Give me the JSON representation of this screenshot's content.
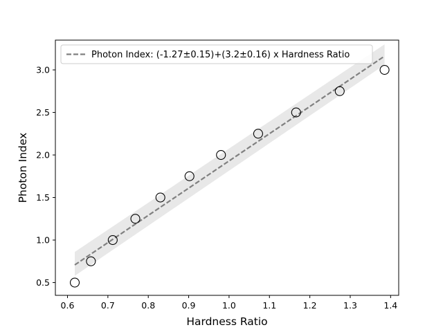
{
  "chart_data": {
    "type": "scatter",
    "title": "",
    "xlabel": "Hardness Ratio",
    "ylabel": "Photon Index",
    "xlim": [
      0.57,
      1.42
    ],
    "ylim": [
      0.35,
      3.35
    ],
    "xticks": [
      "0.6",
      "0.7",
      "0.8",
      "0.9",
      "1.0",
      "1.1",
      "1.2",
      "1.3",
      "1.4"
    ],
    "yticks": [
      "0.5",
      "1.0",
      "1.5",
      "2.0",
      "2.5",
      "3.0"
    ],
    "grid": false,
    "legend_position": "upper-left",
    "series": [
      {
        "type": "scatter",
        "marker": "open-circle",
        "x": [
          0.618,
          0.658,
          0.712,
          0.768,
          0.83,
          0.902,
          0.98,
          1.072,
          1.166,
          1.274,
          1.385
        ],
        "y": [
          0.5,
          0.75,
          1.0,
          1.25,
          1.5,
          1.75,
          2.0,
          2.25,
          2.5,
          2.75,
          3.0
        ]
      },
      {
        "type": "line",
        "name": "Photon Index: (-1.27±0.15)+(3.2±0.16) x Hardness Ratio",
        "intercept": -1.27,
        "slope": 3.2,
        "x_range": [
          0.618,
          1.385
        ],
        "style": "dashed",
        "color": "#808080",
        "band_color": "#e8e8e8",
        "band": {
          "x": [
            0.618,
            1.385
          ],
          "lower": [
            0.58,
            3.06
          ],
          "upper": [
            0.86,
            3.3
          ]
        }
      }
    ]
  }
}
